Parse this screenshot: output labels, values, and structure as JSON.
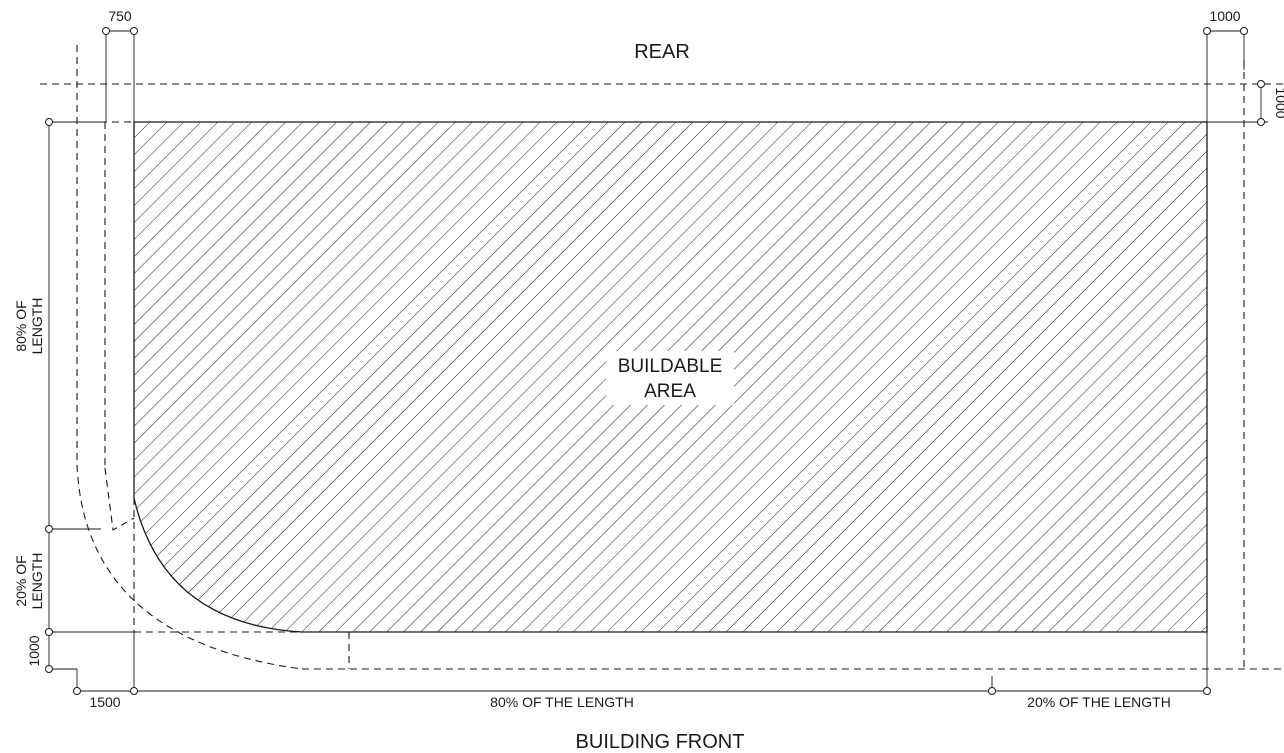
{
  "labels": {
    "rear": "REAR",
    "building_front": "BUILDING FRONT",
    "buildable_area_line1": "BUILDABLE",
    "buildable_area_line2": "AREA"
  },
  "dimensions": {
    "top_left_setback": "750",
    "top_right_setback": "1000",
    "right_rear_setback": "1000",
    "bottom_left_corner": "1500",
    "left_bottom_setback": "1000",
    "left_80_line1": "80% OF",
    "left_80_line2": "LENGTH",
    "left_20_line1": "20% OF",
    "left_20_line2": "LENGTH",
    "bottom_80": "80% OF THE LENGTH",
    "bottom_20": "20% OF THE LENGTH"
  },
  "colors": {
    "line": "#1a1a1a",
    "background": "#ffffff"
  }
}
